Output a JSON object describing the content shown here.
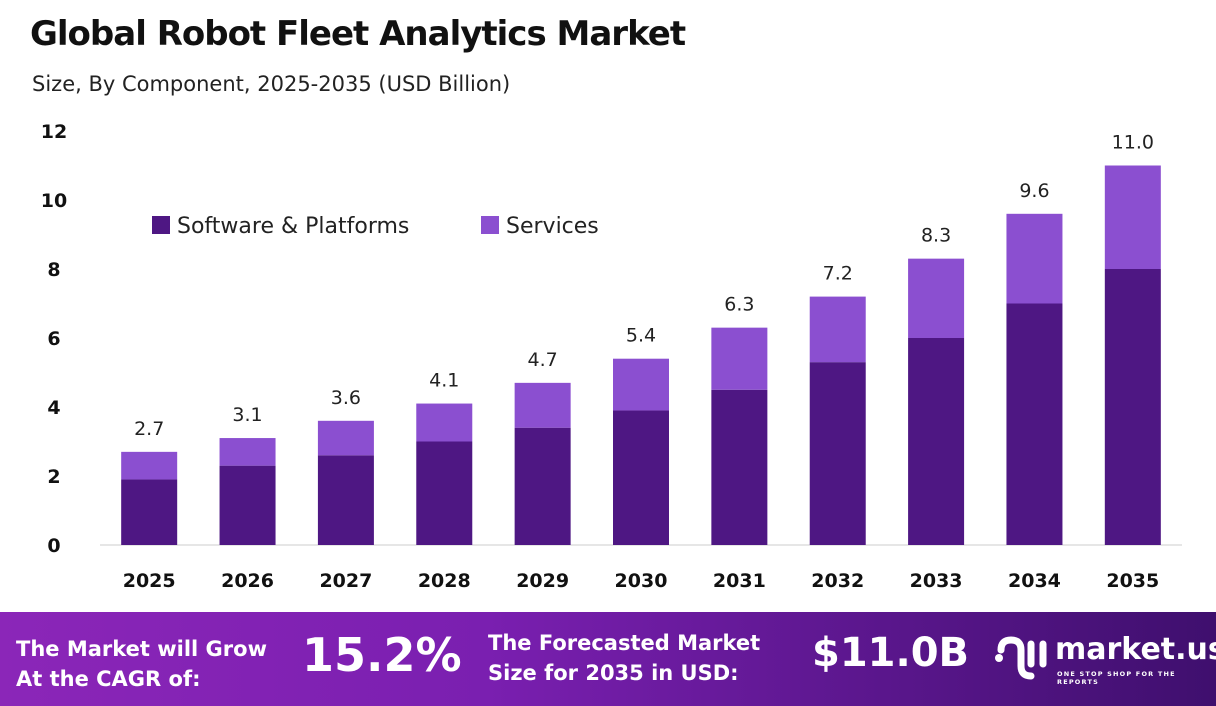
{
  "chart_data": {
    "type": "bar",
    "stacked": true,
    "title": "Global Robot Fleet Analytics Market",
    "subtitle": "Size, By Component, 2025-2035 (USD Billion)",
    "categories": [
      "2025",
      "2026",
      "2027",
      "2028",
      "2029",
      "2030",
      "2031",
      "2032",
      "2033",
      "2034",
      "2035"
    ],
    "series": [
      {
        "name": "Software & Platforms",
        "color": "#4e1783",
        "values": [
          1.9,
          2.3,
          2.6,
          3.0,
          3.4,
          3.9,
          4.5,
          5.3,
          6.0,
          7.0,
          8.0
        ]
      },
      {
        "name": "Services",
        "color": "#8b4fd0",
        "values": [
          0.8,
          0.8,
          1.0,
          1.1,
          1.3,
          1.5,
          1.8,
          1.9,
          2.3,
          2.6,
          3.0
        ]
      }
    ],
    "totals": [
      "2.7",
      "3.1",
      "3.6",
      "4.1",
      "4.7",
      "5.4",
      "6.3",
      "7.2",
      "8.3",
      "9.6",
      "11.0"
    ],
    "ylim": [
      0,
      12
    ],
    "yticks": [
      "0",
      "2",
      "4",
      "6",
      "8",
      "10",
      "12"
    ],
    "legend_position": "top-left",
    "grid": false
  },
  "footer": {
    "cagr_label_1": "The Market will Grow",
    "cagr_label_2": "At the CAGR of:",
    "cagr_value": "15.2%",
    "forecast_label_1": "The Forecasted Market",
    "forecast_label_2": "Size for 2035 in USD:",
    "forecast_value": "$11.0B",
    "brand": "market.us",
    "tagline": "ONE STOP SHOP FOR THE REPORTS"
  }
}
